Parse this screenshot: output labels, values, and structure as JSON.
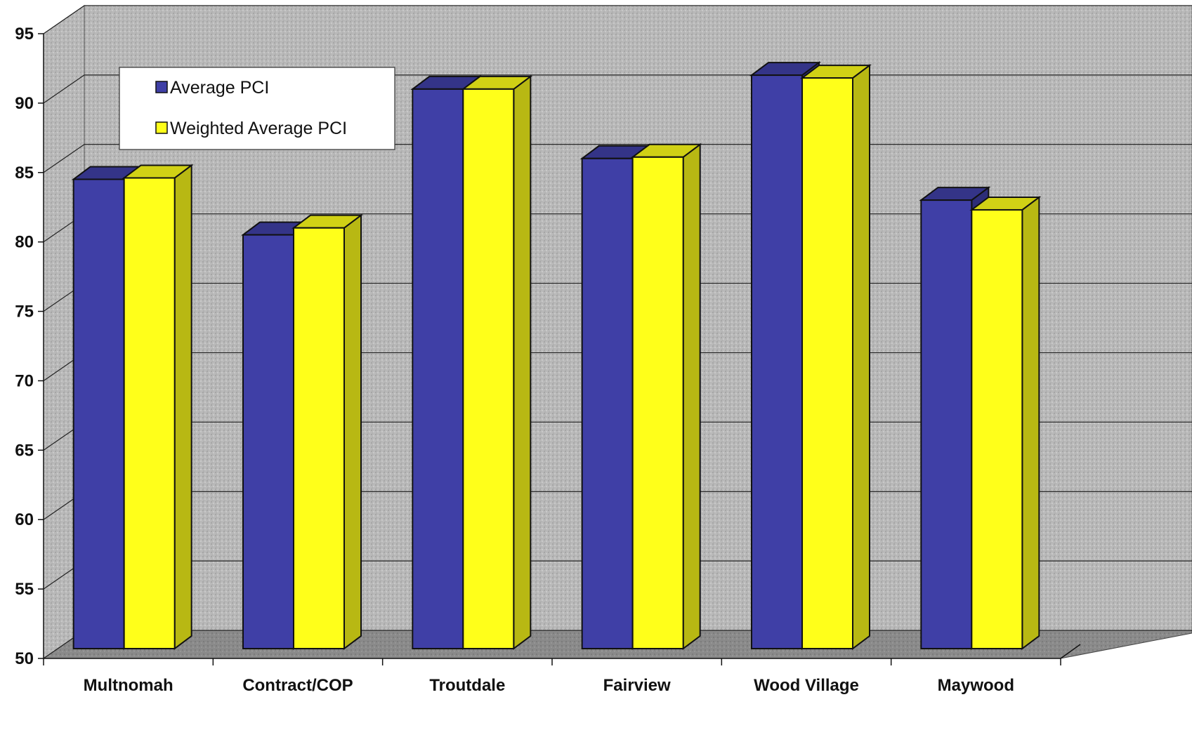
{
  "chart_data": {
    "type": "bar",
    "title": "",
    "xlabel": "",
    "ylabel": "",
    "categories": [
      "Multnomah",
      "Contract/COP",
      "Troutdale",
      "Fairview",
      "Wood Village",
      "Maywood"
    ],
    "series": [
      {
        "name": "Average PCI",
        "color": "#3f3fa6",
        "values": [
          83.5,
          79.5,
          90,
          85,
          91,
          82
        ]
      },
      {
        "name": "Weighted Average PCI",
        "color": "#ffff1a",
        "values": [
          83.6,
          80,
          90,
          85.1,
          90.8,
          81.3
        ]
      }
    ],
    "ylim": [
      50,
      95
    ],
    "yticks": [
      50,
      55,
      60,
      65,
      70,
      75,
      80,
      85,
      90,
      95
    ],
    "grid": true,
    "legend_position": "top-left",
    "style": "3d-clustered-column",
    "colors": {
      "wall": "#b8b8b8",
      "floor": "#8c8c8c",
      "outline": "#111111"
    }
  }
}
